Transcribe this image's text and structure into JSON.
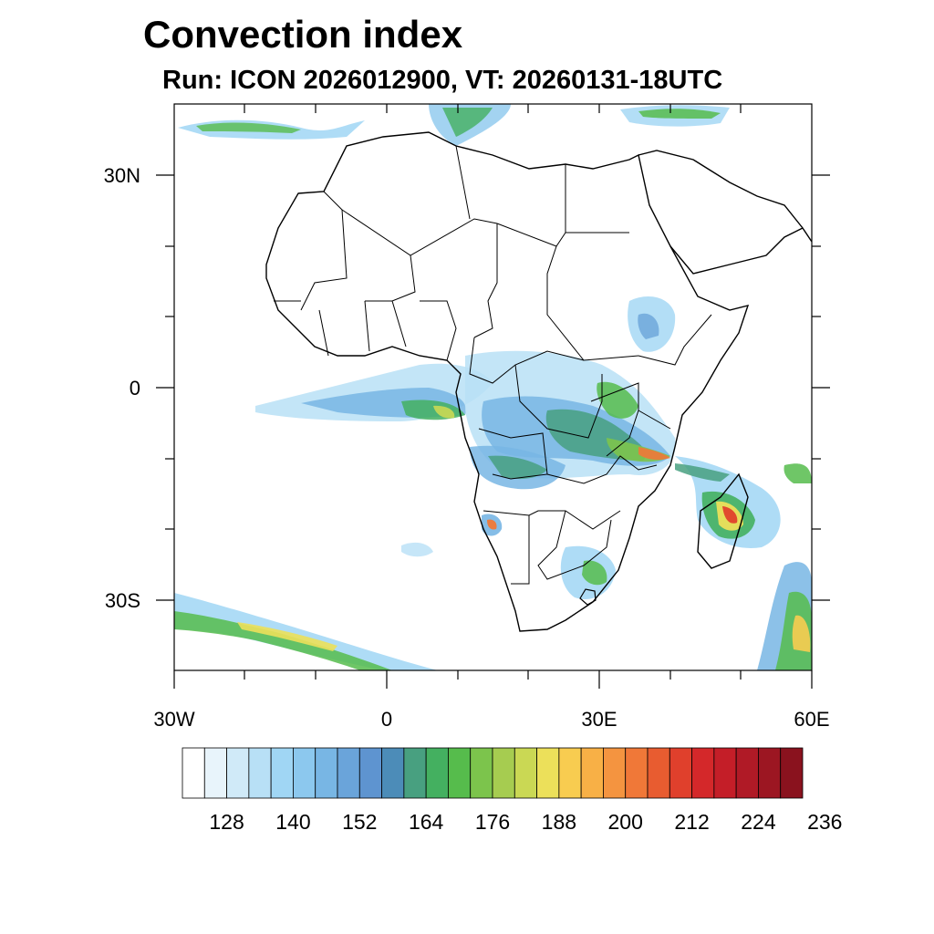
{
  "title": "Convection index",
  "subtitle": "Run: ICON 2026012900,  VT: 20260131-18UTC",
  "map": {
    "lon_range": [
      -30,
      60
    ],
    "lat_range": [
      -40,
      40
    ],
    "lat_labels": [
      "30N",
      "0",
      "30S"
    ],
    "lon_labels": [
      "30W",
      "0",
      "30E",
      "60E"
    ]
  },
  "colorbar": {
    "labels": [
      "128",
      "140",
      "152",
      "164",
      "176",
      "188",
      "200",
      "212",
      "224",
      "236"
    ],
    "colors": [
      "#ffffff",
      "#e8f4fb",
      "#d0eaf8",
      "#b8e0f6",
      "#a0d6f4",
      "#8cc8ee",
      "#78b6e4",
      "#6aa4da",
      "#5e94d0",
      "#4c8cb8",
      "#48a080",
      "#44b060",
      "#56bc4c",
      "#7cc44c",
      "#a6cc50",
      "#cad854",
      "#ece05a",
      "#f8cc50",
      "#f8b046",
      "#f49440",
      "#f07838",
      "#e85c30",
      "#e0402c",
      "#d4282a",
      "#c41e28",
      "#b01a26",
      "#9c1622",
      "#8a121e"
    ]
  }
}
